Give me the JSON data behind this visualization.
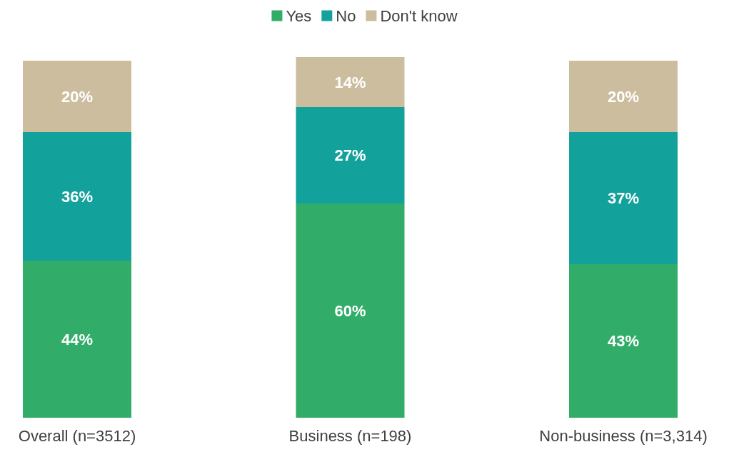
{
  "chart_data": {
    "type": "bar",
    "stacked": true,
    "categories": [
      "Overall (n=3512)",
      "Business (n=198)",
      "Non-business (n=3,314)"
    ],
    "series": [
      {
        "name": "Yes",
        "color": "#31ac69",
        "values": [
          44,
          60,
          43
        ],
        "value_labels": [
          "44%",
          "60%",
          "43%"
        ]
      },
      {
        "name": "No",
        "color": "#13a19c",
        "values": [
          36,
          27,
          37
        ],
        "value_labels": [
          "36%",
          "27%",
          "37%"
        ]
      },
      {
        "name": "Don't know",
        "color": "#cdbd9f",
        "values": [
          20,
          14,
          20
        ],
        "value_labels": [
          "20%",
          "14%",
          "20%"
        ]
      }
    ],
    "legend": "top"
  }
}
